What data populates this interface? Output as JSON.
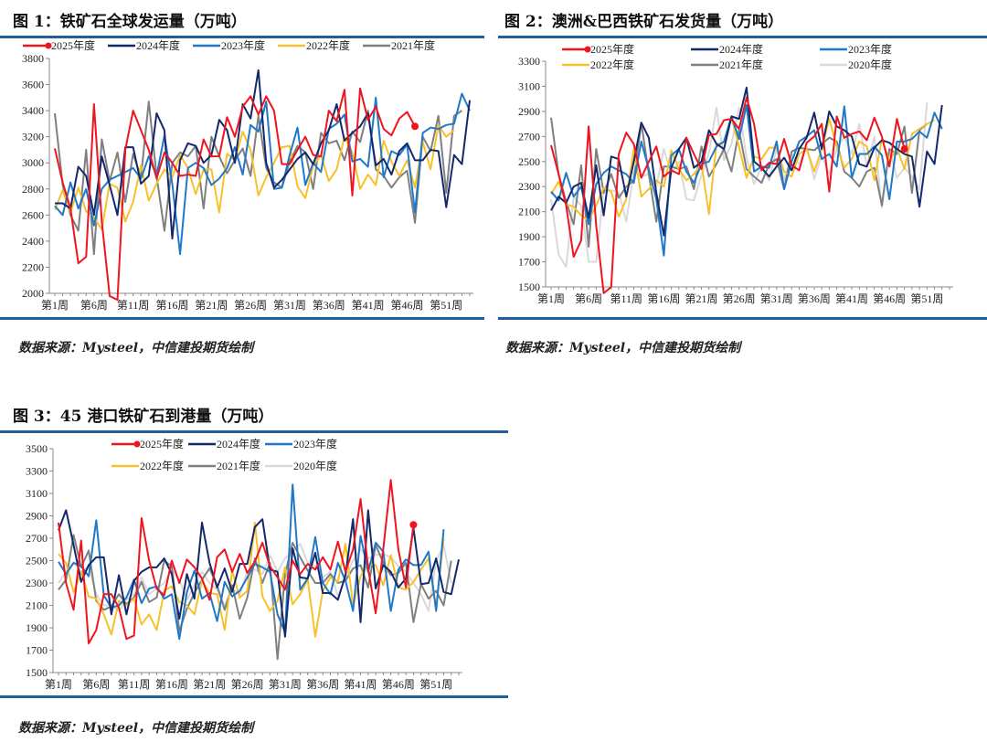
{
  "colors": {
    "2025": "#f0141e",
    "2024": "#14296b",
    "2023": "#1f78c8",
    "2022": "#f8c12a",
    "2021": "#7f7f7f",
    "2020": "#d9d9d9",
    "rule": "#1f5f9e"
  },
  "source": "数据来源：Mysteel，中信建投期货绘制",
  "chart_data": [
    {
      "type": "line",
      "title": "图 1：铁矿石全球发运量（万吨）",
      "ylim": [
        2000,
        3800
      ],
      "yticks": [
        2000,
        2200,
        2400,
        2600,
        2800,
        3000,
        3200,
        3400,
        3600,
        3800
      ],
      "xticks": [
        "第1周",
        "第6周",
        "第11周",
        "第16周",
        "第21周",
        "第26周",
        "第31周",
        "第36周",
        "第41周",
        "第46周",
        "第51周"
      ],
      "legend": "top",
      "marker_series": "2025年度",
      "series": [
        {
          "name": "2025年度",
          "key": "2025",
          "values": [
            3110,
            2850,
            2650,
            2230,
            2280,
            3450,
            2550,
            1980,
            1950,
            3100,
            3400,
            3250,
            3100,
            2880,
            3080,
            3000,
            2900,
            2910,
            2900,
            3180,
            3050,
            3050,
            3350,
            3200,
            3430,
            3510,
            3370,
            3510,
            3400,
            2990,
            2990,
            3100,
            3200,
            3060,
            3050,
            3400,
            3320,
            3560,
            2750,
            3570,
            3330,
            3430,
            3260,
            3210,
            3340,
            3390,
            3280
          ]
        },
        {
          "name": "2024年度",
          "key": "2024",
          "values": [
            2690,
            2690,
            2650,
            2970,
            2900,
            2600,
            3050,
            2830,
            2600,
            3120,
            3120,
            2840,
            2900,
            3380,
            3250,
            2420,
            3020,
            3150,
            3130,
            3000,
            3060,
            3330,
            3250,
            3000,
            3450,
            3340,
            3710,
            3000,
            2810,
            2870,
            2950,
            3030,
            3080,
            2990,
            3150,
            3250,
            3450,
            3170,
            3230,
            3280,
            3380,
            2980,
            3030,
            2910,
            3090,
            3150,
            3020,
            3020,
            3100,
            3090,
            2660,
            3060,
            2990,
            3480
          ]
        },
        {
          "name": "2023年度",
          "key": "2023",
          "values": [
            2670,
            2600,
            2850,
            2650,
            2800,
            2520,
            2800,
            2870,
            2900,
            2930,
            2960,
            2880,
            3050,
            2900,
            3210,
            2840,
            2300,
            2960,
            3000,
            2960,
            2830,
            2880,
            2960,
            3120,
            2910,
            3290,
            3240,
            3470,
            2800,
            2810,
            3060,
            3270,
            2830,
            3000,
            2930,
            3260,
            3300,
            3370,
            3010,
            3030,
            2970,
            3500,
            2890,
            3090,
            3060,
            3140,
            2620,
            3230,
            3270,
            3260,
            3290,
            3300,
            3530,
            3400
          ]
        },
        {
          "name": "2022年度",
          "key": "2022",
          "values": [
            2640,
            2790,
            2620,
            2810,
            2630,
            2580,
            2490,
            2840,
            2810,
            2550,
            2700,
            2980,
            2710,
            2840,
            2950,
            2890,
            3060,
            2960,
            2760,
            2950,
            2950,
            2620,
            3070,
            3020,
            3240,
            3100,
            2750,
            2890,
            3000,
            3120,
            3130,
            2820,
            2730,
            2980,
            3060,
            2860,
            2950,
            3200,
            3080,
            2800,
            2910,
            2830,
            3170,
            3010,
            2900,
            3020,
            2810,
            3160,
            2950,
            3290,
            3200,
            3250
          ]
        },
        {
          "name": "2021年度",
          "key": "2021",
          "values": [
            3380,
            2830,
            2600,
            2480,
            3100,
            2300,
            3180,
            2860,
            3080,
            2700,
            3070,
            2890,
            3470,
            2900,
            2480,
            3000,
            3080,
            3050,
            3130,
            2650,
            3200,
            3050,
            2920,
            3020,
            3110,
            2900,
            3360,
            2960,
            2850,
            2810,
            3010,
            3130,
            3080,
            2800,
            3230,
            3150,
            3170,
            3020,
            3240,
            3160,
            3400,
            2950,
            2900,
            2810,
            2890,
            2940,
            2540,
            3200,
            3090,
            3360,
            2770,
            3360,
            3400
          ]
        }
      ]
    },
    {
      "type": "line",
      "title": "图 2：澳洲&巴西铁矿石发货量（万吨）",
      "ylim": [
        1500,
        3300
      ],
      "yticks": [
        1500,
        1700,
        1900,
        2100,
        2300,
        2500,
        2700,
        2900,
        3100,
        3300
      ],
      "xticks": [
        "第1周",
        "第6周",
        "第11周",
        "第16周",
        "第21周",
        "第26周",
        "第31周",
        "第36周",
        "第41周",
        "第46周",
        "第51周"
      ],
      "legend": "top",
      "marker_series": "2025年度",
      "series": [
        {
          "name": "2025年度",
          "key": "2025",
          "values": [
            2630,
            2400,
            2150,
            1740,
            1870,
            2780,
            1990,
            1450,
            1500,
            2560,
            2730,
            2640,
            2370,
            2500,
            2620,
            2380,
            2430,
            2400,
            2690,
            2560,
            2440,
            2710,
            2720,
            2830,
            2840,
            2760,
            3010,
            2800,
            2430,
            2490,
            2480,
            2680,
            2470,
            2430,
            2650,
            2700,
            2800,
            2260,
            2860,
            2690,
            2720,
            2740,
            2670,
            2850,
            2700,
            2460,
            2840,
            2600
          ]
        },
        {
          "name": "2024年度",
          "key": "2024",
          "values": [
            2110,
            2220,
            2170,
            2300,
            2330,
            2050,
            2470,
            2070,
            2540,
            2520,
            2220,
            2500,
            2810,
            2690,
            2250,
            1910,
            2450,
            2600,
            2690,
            2450,
            2500,
            2750,
            2640,
            2600,
            2860,
            2840,
            3090,
            2500,
            2450,
            2380,
            2460,
            2530,
            2430,
            2600,
            2690,
            2890,
            2600,
            2900,
            2780,
            2750,
            2700,
            2480,
            2460,
            2610,
            2670,
            2650,
            2600,
            2560,
            2540,
            2140,
            2580,
            2480,
            2950
          ]
        },
        {
          "name": "2023年度",
          "key": "2023",
          "values": [
            2260,
            2190,
            2410,
            2220,
            2300,
            2000,
            2320,
            2410,
            2460,
            2430,
            2400,
            2330,
            2660,
            2440,
            2200,
            1750,
            2550,
            2600,
            2420,
            2330,
            2480,
            2500,
            2620,
            2660,
            2860,
            2680,
            2950,
            2420,
            2460,
            2450,
            2660,
            2280,
            2500,
            2660,
            2700,
            2750,
            2520,
            2560,
            2460,
            2940,
            2370,
            2560,
            2560,
            2620,
            2550,
            2200,
            2660,
            2660,
            2680,
            2740,
            2690,
            2890,
            2760
          ]
        },
        {
          "name": "2022年度",
          "key": "2022",
          "values": [
            2240,
            2340,
            2160,
            2140,
            2070,
            2030,
            2150,
            2290,
            2260,
            2060,
            2200,
            2600,
            2220,
            2280,
            2350,
            2300,
            2590,
            2440,
            2350,
            2400,
            2480,
            2080,
            2640,
            2650,
            2850,
            2620,
            2370,
            2540,
            2520,
            2610,
            2610,
            2420,
            2380,
            2560,
            2600,
            2420,
            2600,
            2840,
            2620,
            2450,
            2520,
            2660,
            2620,
            2350,
            2680,
            2500,
            2610,
            2440,
            2720,
            2760,
            2800,
            2830
          ]
        },
        {
          "name": "2021年度",
          "key": "2021",
          "values": [
            2850,
            2400,
            2180,
            2000,
            2470,
            1820,
            2600,
            2250,
            2400,
            2210,
            2300,
            2350,
            2810,
            2400,
            2020,
            2460,
            2460,
            2440,
            2460,
            2280,
            2620,
            2380,
            2480,
            2600,
            2420,
            2750,
            2440,
            2380,
            2330,
            2480,
            2520,
            2280,
            2580,
            2610,
            2600,
            2590,
            2640,
            2690,
            2660,
            2420,
            2370,
            2300,
            2420,
            2450,
            2150,
            2600,
            2560,
            2780,
            2250,
            2750,
            2800
          ]
        },
        {
          "name": "2020年度",
          "key": "2020",
          "values": [
            2200,
            1760,
            1660,
            2220,
            2150,
            1700,
            1700,
            2280,
            2270,
            2260,
            2020,
            2420,
            2380,
            2400,
            2300,
            2600,
            2400,
            2500,
            2200,
            2190,
            2390,
            2570,
            2930,
            2510,
            2640,
            2930,
            2530,
            2320,
            2460,
            2350,
            2610,
            2350,
            2560,
            2480,
            2620,
            2360,
            2550,
            2400,
            2600,
            2700,
            2560,
            2800,
            2460,
            2700,
            2130,
            2600,
            2370,
            2450,
            2380,
            2280,
            2970
          ]
        }
      ]
    },
    {
      "type": "line",
      "title": "图 3：45 港口铁矿石到港量（万吨）",
      "ylim": [
        1500,
        3500
      ],
      "yticks": [
        1500,
        1700,
        1900,
        2100,
        2300,
        2500,
        2700,
        2900,
        3100,
        3300,
        3500
      ],
      "xticks": [
        "第1周",
        "第6周",
        "第11周",
        "第16周",
        "第21周",
        "第26周",
        "第31周",
        "第36周",
        "第41周",
        "第46周",
        "第51周"
      ],
      "legend": "top",
      "marker_series": "2025年度",
      "series": [
        {
          "name": "2025年度",
          "key": "2025",
          "values": [
            2840,
            2300,
            2060,
            2680,
            1760,
            1880,
            2200,
            2200,
            2080,
            1800,
            1830,
            2880,
            2500,
            2250,
            2190,
            2500,
            2300,
            2510,
            2440,
            2340,
            2150,
            2530,
            2600,
            2400,
            2560,
            2390,
            2490,
            2660,
            2450,
            2350,
            2240,
            2500,
            2380,
            2470,
            2420,
            2530,
            2420,
            2670,
            2400,
            2600,
            3050,
            2430,
            2030,
            2600,
            3220,
            2600,
            2260,
            2820
          ]
        },
        {
          "name": "2024年度",
          "key": "2024",
          "values": [
            2770,
            2950,
            2640,
            2310,
            2460,
            2530,
            2530,
            2020,
            2370,
            2020,
            2320,
            2400,
            2440,
            2440,
            2520,
            2380,
            1980,
            2380,
            2160,
            2840,
            2480,
            2260,
            2430,
            2220,
            2470,
            2470,
            2800,
            2870,
            2420,
            2400,
            1820,
            2610,
            2350,
            2340,
            2570,
            2210,
            2210,
            2150,
            2370,
            2870,
            1950,
            2950,
            2250,
            2460,
            2400,
            2260,
            2340,
            2790,
            2290,
            2300,
            2520,
            2220,
            2200,
            2510
          ]
        },
        {
          "name": "2023年度",
          "key": "2023",
          "values": [
            2490,
            2380,
            2480,
            2450,
            2360,
            2860,
            2190,
            2080,
            2100,
            2170,
            2330,
            2120,
            2250,
            2270,
            2160,
            2200,
            1800,
            2220,
            2410,
            2160,
            2210,
            1960,
            2310,
            2180,
            2230,
            2350,
            2470,
            2440,
            2400,
            2020,
            1860,
            3180,
            2240,
            2340,
            2710,
            2300,
            2200,
            2480,
            2320,
            2050,
            2720,
            2400,
            2660,
            2580,
            2050,
            2420,
            2510,
            2460,
            2460,
            2580,
            2050,
            2780
          ]
        },
        {
          "name": "2022年度",
          "key": "2022",
          "values": [
            2560,
            2480,
            2220,
            2400,
            2180,
            2160,
            2020,
            1840,
            2140,
            2100,
            2160,
            1930,
            2020,
            1880,
            2230,
            2270,
            2130,
            2100,
            2020,
            2320,
            2210,
            2200,
            1880,
            2410,
            2170,
            2230,
            2840,
            2180,
            2050,
            2140,
            2440,
            2110,
            2200,
            2330,
            1820,
            2230,
            2350,
            2310,
            2650,
            2100,
            2360,
            2470,
            2460,
            2280,
            2550,
            2260,
            2240,
            2310,
            2420,
            2520,
            2080,
            2700
          ]
        },
        {
          "name": "2021年度",
          "key": "2021",
          "values": [
            2240,
            2330,
            2730,
            2440,
            2590,
            2140,
            2060,
            2090,
            2200,
            2110,
            2170,
            2310,
            2130,
            2170,
            2500,
            2450,
            1870,
            2070,
            2210,
            2330,
            2430,
            2280,
            2060,
            2280,
            1980,
            2170,
            2520,
            2300,
            2480,
            1620,
            2380,
            2660,
            2530,
            2410,
            2300,
            2300,
            2380,
            2300,
            2320,
            2430,
            2460,
            2260,
            2640,
            2480,
            2370,
            2390,
            2480,
            1950,
            2290,
            2160,
            2230,
            2100,
            2500
          ]
        },
        {
          "name": "2020年度",
          "key": "2020",
          "values": [
            2300,
            2400,
            2480,
            2400,
            2450,
            2200,
            2100,
            2100,
            2050,
            2150,
            2200,
            2350,
            2200,
            2250,
            2300,
            2420,
            2330,
            2150,
            2280,
            2400,
            2300,
            2240,
            2100,
            2250,
            2200,
            2400,
            2420,
            2380,
            2550,
            2400,
            2520,
            2580,
            2650,
            2480,
            2450,
            2350,
            2400,
            2180,
            2350,
            2500,
            2600,
            2520,
            2550,
            2560,
            2530,
            2450,
            2400,
            2300,
            2200,
            2050,
            2500,
            2640,
            2300
          ]
        }
      ]
    }
  ]
}
